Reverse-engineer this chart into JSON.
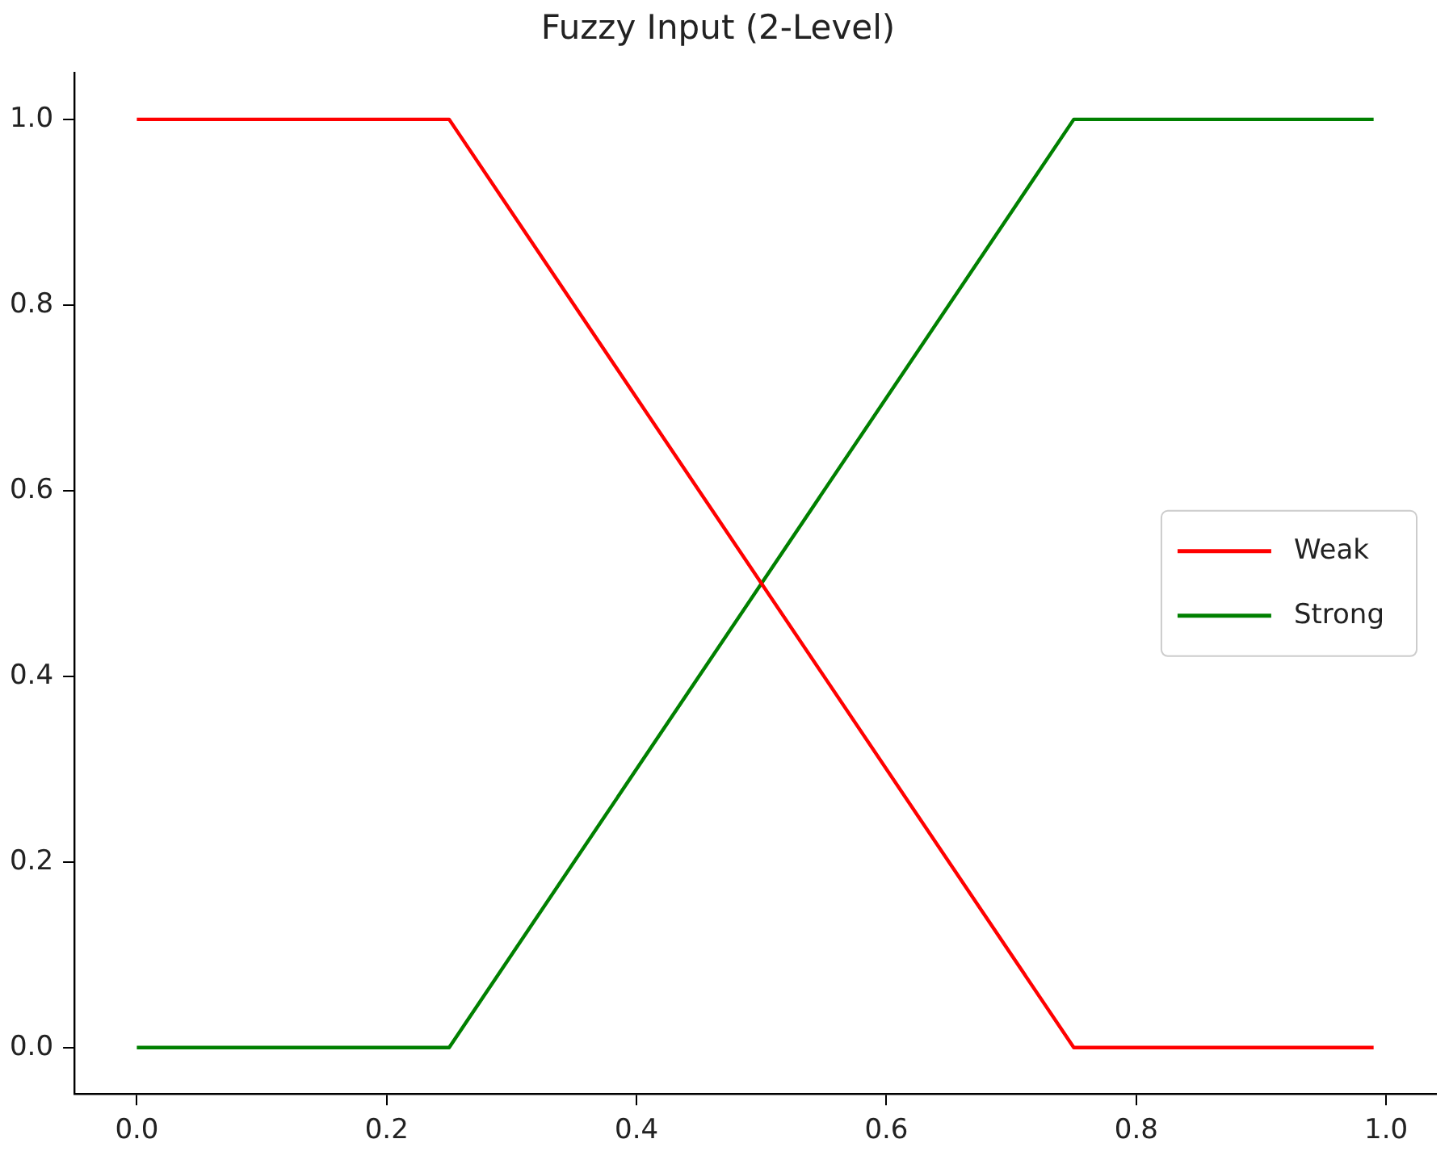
{
  "chart_data": {
    "type": "line",
    "title": "Fuzzy Input (2-Level)",
    "series": [
      {
        "name": "Weak",
        "color": "#ff0000",
        "x": [
          0,
          0.25,
          0.75,
          0.99
        ],
        "values": [
          1,
          1,
          0,
          0
        ]
      },
      {
        "name": "Strong",
        "color": "#008000",
        "x": [
          0,
          0.25,
          0.75,
          0.99
        ],
        "values": [
          0,
          0,
          1,
          1
        ]
      }
    ],
    "xlim": [
      -0.05,
      1.04
    ],
    "xticks": [
      {
        "value": 0,
        "label": "0.0"
      },
      {
        "value": 0.2,
        "label": "0.2"
      },
      {
        "value": 0.4,
        "label": "0.4"
      },
      {
        "value": 0.6,
        "label": "0.6"
      },
      {
        "value": 0.8,
        "label": "0.8"
      },
      {
        "value": 1,
        "label": "1.0"
      }
    ],
    "ylim": [
      -0.05,
      1.05
    ],
    "yticks": [
      {
        "value": 0,
        "label": "0.0"
      },
      {
        "value": 0.2,
        "label": "0.2"
      },
      {
        "value": 0.4,
        "label": "0.4"
      },
      {
        "value": 0.6,
        "label": "0.6"
      },
      {
        "value": 0.8,
        "label": "0.8"
      },
      {
        "value": 1,
        "label": "1.0"
      }
    ],
    "grid": false,
    "legend": "center right",
    "marker": "none",
    "line_style": "solid"
  }
}
